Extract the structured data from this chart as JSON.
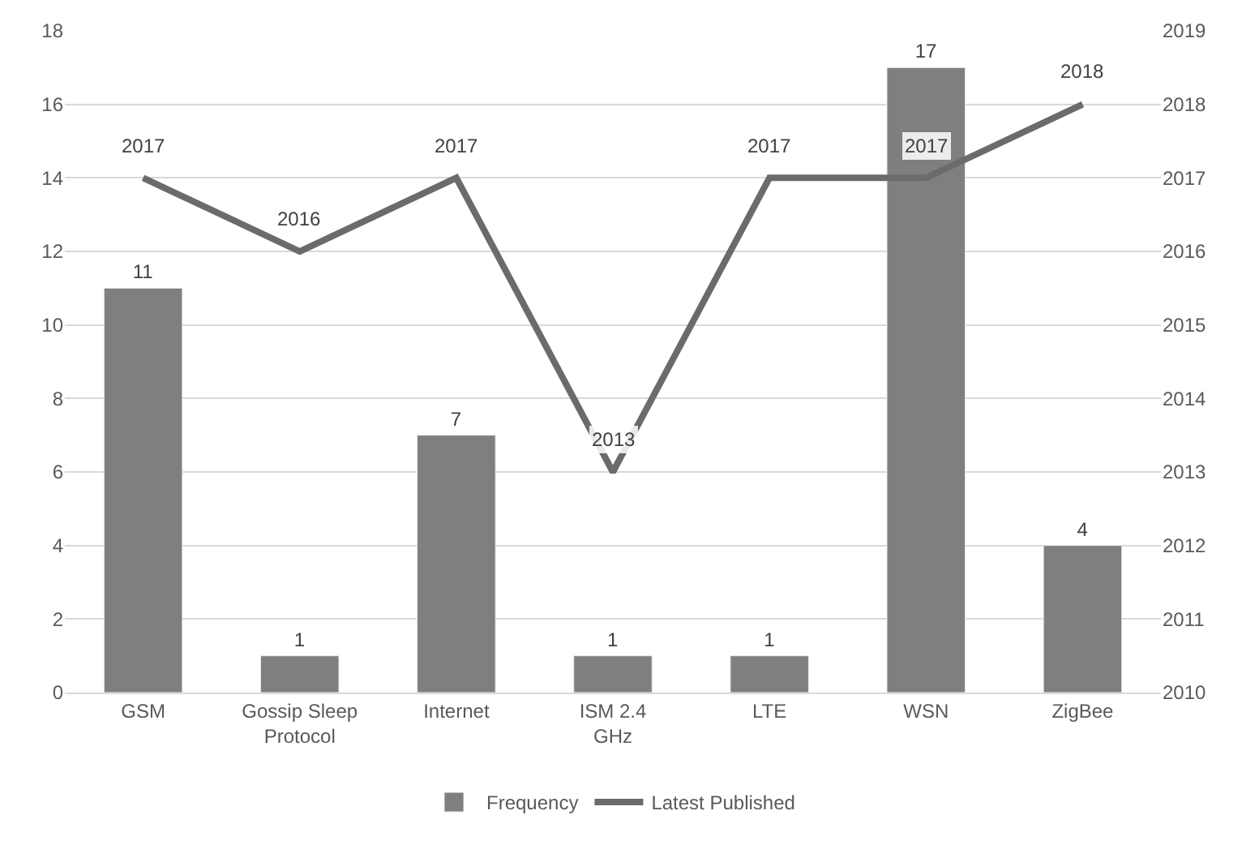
{
  "chart_data": {
    "type": "bar",
    "categories": [
      "GSM",
      "Gossip Sleep Protocol",
      "Internet",
      "ISM 2.4 GHz",
      "LTE",
      "WSN",
      "ZigBee"
    ],
    "series": [
      {
        "name": "Frequency",
        "color": "#7f7f7f",
        "values": [
          11,
          1,
          7,
          1,
          1,
          17,
          4
        ]
      },
      {
        "name": "Latest Published",
        "type": "line",
        "axis": "y2",
        "color": "#6b6b6b",
        "values": [
          2017,
          2016,
          2017,
          2013,
          2017,
          2017,
          2018
        ]
      }
    ],
    "ylim": [
      0,
      18
    ],
    "yticks": [
      0,
      2,
      4,
      6,
      8,
      10,
      12,
      14,
      16,
      18
    ],
    "y2lim": [
      2010,
      2019
    ],
    "y2ticks": [
      2010,
      2011,
      2012,
      2013,
      2014,
      2015,
      2016,
      2017,
      2018,
      2019
    ],
    "grid": "y",
    "legend": "bottom",
    "data_labels": true,
    "marker": "none",
    "line_style": "solid"
  }
}
